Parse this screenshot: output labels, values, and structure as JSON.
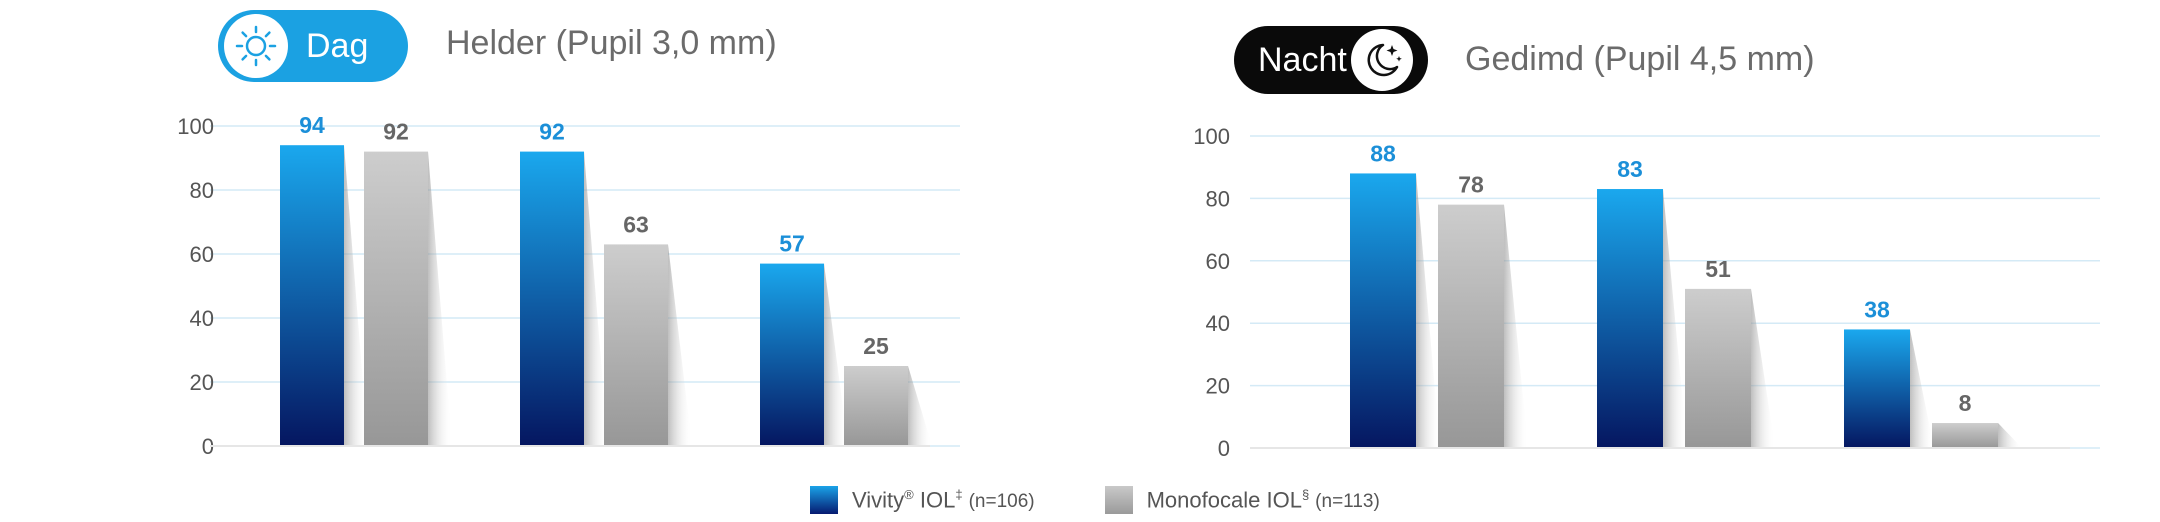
{
  "colors": {
    "vivity": "#1ba1e2",
    "monofocal": "#b9b9b9",
    "value_vivity": "#1b8fd8",
    "value_monofocal": "#666666",
    "gridline": "#d4eaf6"
  },
  "panels": [
    {
      "badge": {
        "label": "Dag",
        "icon": "sun-icon"
      },
      "condition": "Helder (Pupil 3,0 mm)"
    },
    {
      "badge": {
        "label": "Nacht",
        "icon": "moon-stars-icon"
      },
      "condition": "Gedimd (Pupil 4,5 mm)"
    }
  ],
  "legend": {
    "items": [
      {
        "name": "Vivity",
        "mark": "®",
        "suffix": " IOL",
        "sup": "‡",
        "n": "(n=106)"
      },
      {
        "name": "Monofocale",
        "mark": "",
        "suffix": " IOL",
        "sup": "§",
        "n": "(n=113)"
      }
    ]
  },
  "chart_data": [
    {
      "type": "bar",
      "categories": [
        "",
        "",
        ""
      ],
      "series": [
        {
          "values": [
            94,
            92,
            57
          ]
        },
        {
          "values": [
            92,
            63,
            25
          ]
        }
      ],
      "ylim": [
        0,
        100
      ],
      "yticks": [
        "0",
        "20",
        "40",
        "60",
        "80",
        "100"
      ],
      "grid": true
    },
    {
      "type": "bar",
      "categories": [
        "",
        "",
        ""
      ],
      "series": [
        {
          "values": [
            88,
            83,
            38
          ]
        },
        {
          "values": [
            78,
            51,
            8
          ]
        }
      ],
      "ylim": [
        0,
        100
      ],
      "yticks": [
        "0",
        "20",
        "40",
        "60",
        "80",
        "100"
      ],
      "grid": true
    }
  ]
}
